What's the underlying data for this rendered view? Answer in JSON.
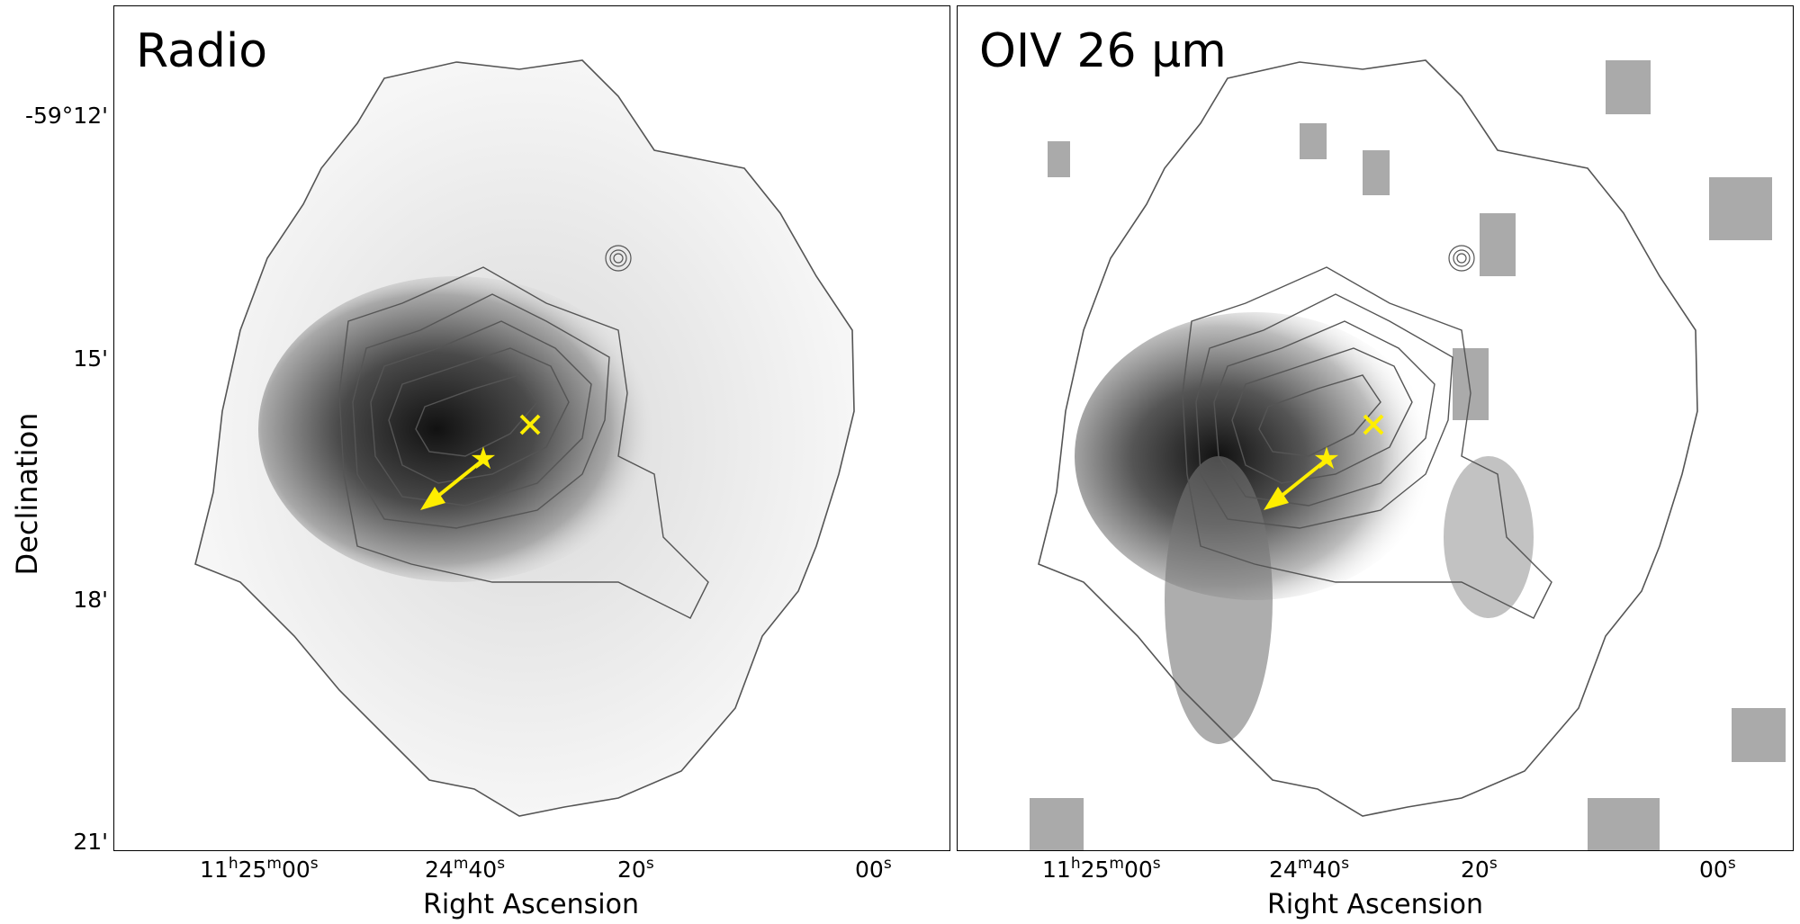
{
  "chart_data": [
    {
      "type": "heatmap",
      "title": "Radio",
      "xlabel": "Right Ascension",
      "ylabel": "Declination",
      "x_ticks": [
        "11h25m00s",
        "24m40s",
        "20s",
        "00s"
      ],
      "y_ticks": [
        "-59°12'",
        "15'",
        "18'",
        "21'"
      ],
      "overlay": [
        "contours",
        "star marker",
        "x marker",
        "arrow"
      ],
      "colormap": "gray_r"
    },
    {
      "type": "heatmap",
      "title": "OIV 26 μm",
      "xlabel": "Right Ascension",
      "ylabel": "",
      "x_ticks": [
        "11h25m00s",
        "24m40s",
        "20s",
        "00s"
      ],
      "y_ticks": [],
      "overlay": [
        "contours",
        "star marker",
        "x marker",
        "arrow"
      ],
      "colormap": "gray_r"
    }
  ],
  "labels": {
    "left_title": "Radio",
    "right_title": "OIV 26 μm",
    "xlabel": "Right Ascension",
    "ylabel": "Declination",
    "y_tick_1": "-59°12'",
    "y_tick_2": "15'",
    "y_tick_3": "18'",
    "y_tick_4": "21'",
    "x_tick_h": "11",
    "x_tick_h_sup": "h",
    "x_tick_m": "25",
    "x_tick_m_sup": "m",
    "x_tick_s": "00",
    "x_tick_s_sup": "s",
    "x_tick_24": "24",
    "x_tick_24_sup": "m",
    "x_tick_40": "40",
    "x_tick_40_sup": "s",
    "x_tick_20": "20",
    "x_tick_20_sup": "s",
    "x_tick_00": "00",
    "x_tick_00_sup": "s"
  },
  "colors": {
    "marker": "#ffee00",
    "contour": "#555555"
  }
}
